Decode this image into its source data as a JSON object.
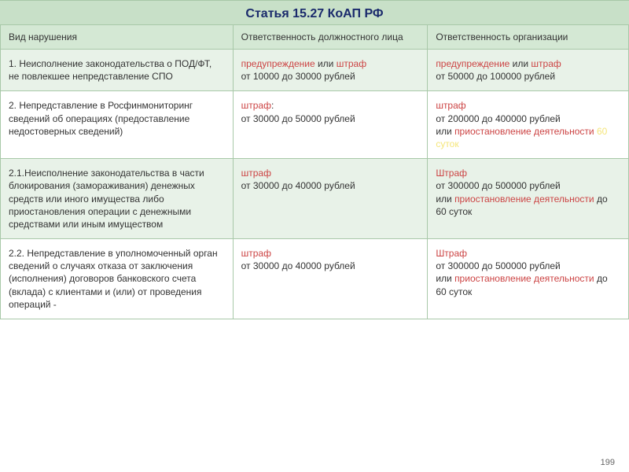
{
  "title": "Статья 15.27 КоАП РФ",
  "headers": {
    "col1": "Вид нарушения",
    "col2": "Ответственность должностного лица",
    "col3": "Ответственность организации"
  },
  "rows": [
    {
      "violation": "1. Неисполнение законодательства о ПОД/ФТ, не повлекшее непредставление СПО",
      "official": [
        {
          "t": "предупреждение",
          "c": "penalty-word"
        },
        {
          "t": " или ",
          "c": ""
        },
        {
          "t": "штраф",
          "c": "penalty-word"
        },
        {
          "t": "\nот 10000 до 30000 рублей",
          "c": ""
        }
      ],
      "org": [
        {
          "t": "предупреждение",
          "c": "penalty-word"
        },
        {
          "t": " или ",
          "c": ""
        },
        {
          "t": "штраф",
          "c": "penalty-word"
        },
        {
          "t": "\nот 50000 до 100000 рублей",
          "c": ""
        }
      ]
    },
    {
      "violation": "2. Непредставление в Росфинмониторинг сведений об операциях (предоставление недостоверных сведений)",
      "official": [
        {
          "t": "штраф",
          "c": "penalty-word"
        },
        {
          "t": ":\nот 30000 до 50000 рублей",
          "c": ""
        }
      ],
      "org": [
        {
          "t": "штраф",
          "c": "penalty-word"
        },
        {
          "t": "\nот 200000 до 400000 рублей\nили ",
          "c": ""
        },
        {
          "t": "приостановление деятельности ",
          "c": "penalty-word"
        },
        {
          "t": "60 суток",
          "c": "penalty-hl"
        }
      ]
    },
    {
      "violation": "2.1.Неисполнение законодательства в части блокирования (замораживания) денежных средств или иного имущества либо приостановления операции с денежными средствами или иным имуществом",
      "official": [
        {
          "t": "штраф",
          "c": "penalty-word"
        },
        {
          "t": "\nот 30000 до 40000 рублей",
          "c": ""
        }
      ],
      "org": [
        {
          "t": "Штраф",
          "c": "penalty-word"
        },
        {
          "t": "\nот 300000 до 500000 рублей\nили ",
          "c": ""
        },
        {
          "t": "приостановление деятельности",
          "c": "penalty-word"
        },
        {
          "t": " до 60 суток",
          "c": ""
        }
      ]
    },
    {
      "violation": "2.2. Непредставление в уполномоченный орган сведений о случаях отказа от заключения (исполнения) договоров банковского счета (вклада) с клиентами и (или) от проведения операций -",
      "official": [
        {
          "t": "штраф",
          "c": "penalty-word"
        },
        {
          "t": "\nот 30000 до 40000 рублей",
          "c": ""
        }
      ],
      "org": [
        {
          "t": "Штраф",
          "c": "penalty-word"
        },
        {
          "t": "\nот 300000 до 500000 рублей\nили ",
          "c": ""
        },
        {
          "t": "приостановление деятельности",
          "c": "penalty-word"
        },
        {
          "t": " до 60 суток",
          "c": ""
        }
      ]
    }
  ],
  "page_number": "199",
  "colors": {
    "header_bg": "#c8e0c8",
    "alt_bg": "#e8f2e8",
    "border": "#a8c8a8",
    "penalty": "#cc4444",
    "highlight": "#f5e67a",
    "title_color": "#1a2a6c"
  }
}
